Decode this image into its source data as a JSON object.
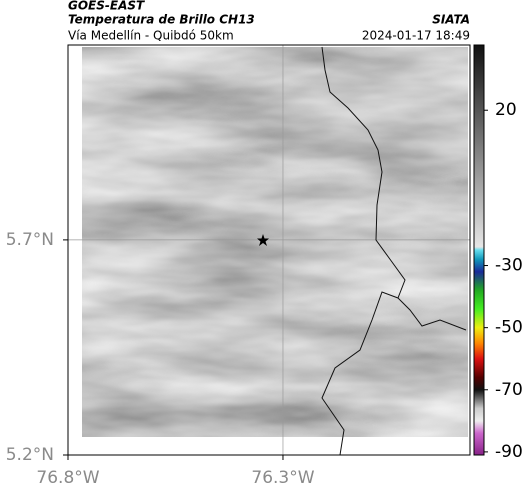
{
  "header": {
    "title": "GOES-EAST",
    "subtitle": "Temperatura de Brillo CH13",
    "source": "SIATA",
    "location": "Vía Medellín - Quibdó 50km",
    "datetime": "2024-01-17 18:49"
  },
  "map": {
    "xlim": [
      -76.8,
      -75.865
    ],
    "ylim": [
      5.2,
      6.153
    ],
    "xticks": [
      {
        "value": -76.8,
        "label": "76.8°W"
      },
      {
        "value": -76.3,
        "label": "76.3°W"
      }
    ],
    "yticks": [
      {
        "value": 5.2,
        "label": "5.2°N"
      },
      {
        "value": 5.7,
        "label": "5.7°N"
      }
    ],
    "grid": true
  },
  "colorbar": {
    "lim": [
      41,
      -91
    ],
    "ticks": [
      20,
      -30,
      -50,
      -70,
      -90
    ],
    "stops": [
      {
        "value": 41,
        "color": "#111111"
      },
      {
        "value": 20,
        "color": "#555555"
      },
      {
        "value": -24,
        "color": "#e6e6e6"
      },
      {
        "value": -25,
        "color": "#66ddee"
      },
      {
        "value": -28,
        "color": "#1199bb"
      },
      {
        "value": -32,
        "color": "#1a2a99"
      },
      {
        "value": -38,
        "color": "#22aa22"
      },
      {
        "value": -44,
        "color": "#44ee22"
      },
      {
        "value": -50,
        "color": "#eeee11"
      },
      {
        "value": -55,
        "color": "#ff8800"
      },
      {
        "value": -60,
        "color": "#dd1111"
      },
      {
        "value": -66,
        "color": "#550000"
      },
      {
        "value": -70,
        "color": "#111111"
      },
      {
        "value": -76,
        "color": "#cccccc"
      },
      {
        "value": -80,
        "color": "#eeeeee"
      },
      {
        "value": -84,
        "color": "#cc66cc"
      },
      {
        "value": -91,
        "color": "#882288"
      }
    ]
  }
}
